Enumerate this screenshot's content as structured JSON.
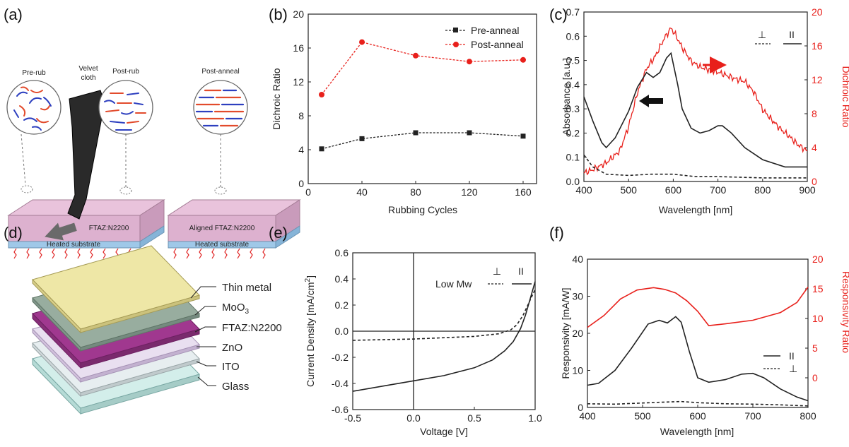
{
  "panels": {
    "a": {
      "label": "(a)",
      "pre_rub": "Pre-rub",
      "velvet_cloth": "Velvet cloth",
      "post_rub": "Post-rub",
      "post_anneal": "Post-anneal",
      "film_label": "FTAZ:N2200",
      "aligned_label": "Aligned FTAZ:N2200",
      "substrate_label": "Heated substrate"
    },
    "d": {
      "label": "(d)",
      "layers": [
        "Thin metal",
        "MoO3",
        "FTAZ:N2200",
        "ZnO",
        "ITO",
        "Glass"
      ]
    },
    "b": {
      "label": "(b)"
    },
    "c": {
      "label": "(c)"
    },
    "e": {
      "label": "(e)"
    },
    "f": {
      "label": "(f)"
    }
  },
  "chart_data": [
    {
      "id": "b",
      "type": "line",
      "xlabel": "Rubbing Cycles",
      "ylabel": "Dichroic Ratio",
      "xlim": [
        0,
        170
      ],
      "ylim": [
        0,
        20
      ],
      "xticks": [
        0,
        40,
        80,
        120,
        160
      ],
      "yticks": [
        0,
        4,
        8,
        12,
        16,
        20
      ],
      "x": [
        10,
        40,
        80,
        120,
        160
      ],
      "series": [
        {
          "name": "Pre-anneal",
          "values": [
            4.1,
            5.3,
            6.0,
            6.0,
            5.6
          ],
          "color": "#222222",
          "marker": "square"
        },
        {
          "name": "Post-anneal",
          "values": [
            10.5,
            16.7,
            15.1,
            14.4,
            14.6
          ],
          "color": "#e8201b",
          "marker": "circle"
        }
      ],
      "legend_position": "top-right"
    },
    {
      "id": "c",
      "type": "line",
      "xlabel": "Wavelength [nm]",
      "ylabel": "Absorbance [a.u.]",
      "ylabel_right": "Dichroic Ratio",
      "xlim": [
        400,
        900
      ],
      "ylim": [
        0,
        0.7
      ],
      "ylim_right": [
        0,
        20
      ],
      "xticks": [
        400,
        500,
        600,
        700,
        800,
        900
      ],
      "yticks": [
        0.0,
        0.1,
        0.2,
        0.3,
        0.4,
        0.5,
        0.6,
        0.7
      ],
      "yticks_right": [
        0,
        4,
        8,
        12,
        16,
        20
      ],
      "legend_symbols": [
        "⊥",
        "II"
      ],
      "series": [
        {
          "role": "parallel absorbance",
          "axis": "left",
          "style": "solid",
          "color": "#222222",
          "x": [
            400,
            420,
            440,
            450,
            470,
            500,
            520,
            540,
            555,
            570,
            585,
            595,
            610,
            620,
            640,
            660,
            680,
            700,
            710,
            730,
            760,
            800,
            850,
            900
          ],
          "y": [
            0.35,
            0.25,
            0.16,
            0.14,
            0.18,
            0.29,
            0.39,
            0.45,
            0.43,
            0.45,
            0.51,
            0.53,
            0.4,
            0.3,
            0.22,
            0.2,
            0.21,
            0.23,
            0.23,
            0.2,
            0.14,
            0.09,
            0.06,
            0.06
          ]
        },
        {
          "role": "perpendicular absorbance",
          "axis": "left",
          "style": "dashed",
          "color": "#222222",
          "x": [
            400,
            420,
            450,
            500,
            550,
            600,
            650,
            700,
            800,
            900
          ],
          "y": [
            0.11,
            0.06,
            0.03,
            0.025,
            0.03,
            0.03,
            0.02,
            0.02,
            0.015,
            0.015
          ]
        },
        {
          "role": "dichroic ratio",
          "axis": "right",
          "style": "solid",
          "color": "#e8201b",
          "x": [
            400,
            420,
            450,
            480,
            500,
            520,
            540,
            560,
            580,
            595,
            605,
            620,
            640,
            660,
            700,
            740,
            760,
            780,
            800,
            820,
            840,
            860,
            880,
            900
          ],
          "y": [
            1.0,
            1.4,
            2.2,
            3.6,
            6.5,
            10.5,
            13.3,
            14.8,
            16.9,
            18.1,
            17.3,
            15.8,
            14.2,
            13.5,
            12.9,
            12.1,
            11.8,
            10.6,
            8.5,
            7.3,
            6.2,
            5.3,
            4.3,
            3.6
          ]
        }
      ]
    },
    {
      "id": "e",
      "type": "line",
      "xlabel": "Voltage [V]",
      "ylabel": "Current Density [mA/cm²]",
      "xlim": [
        -0.5,
        1.0
      ],
      "ylim": [
        -0.6,
        0.6
      ],
      "xticks": [
        -0.5,
        0.0,
        0.5,
        1.0
      ],
      "yticks": [
        -0.6,
        -0.4,
        -0.2,
        0,
        0.2,
        0.4,
        0.6
      ],
      "legend_title": "Low Mw",
      "legend_symbols": [
        "⊥",
        "II"
      ],
      "series": [
        {
          "role": "parallel",
          "style": "solid",
          "color": "#222222",
          "x": [
            -0.5,
            -0.25,
            0.0,
            0.25,
            0.5,
            0.65,
            0.75,
            0.82,
            0.88,
            0.92,
            0.96,
            1.0
          ],
          "y": [
            -0.46,
            -0.42,
            -0.38,
            -0.34,
            -0.28,
            -0.22,
            -0.15,
            -0.08,
            0.02,
            0.12,
            0.25,
            0.38
          ]
        },
        {
          "role": "perpendicular",
          "style": "dashed",
          "color": "#222222",
          "x": [
            -0.5,
            0.0,
            0.5,
            0.7,
            0.8,
            0.85,
            0.9,
            0.95,
            1.0
          ],
          "y": [
            -0.07,
            -0.06,
            -0.04,
            -0.02,
            0.01,
            0.05,
            0.12,
            0.22,
            0.32
          ]
        }
      ]
    },
    {
      "id": "f",
      "type": "line",
      "xlabel": "Wavelength [nm]",
      "ylabel": "Responsivity [mA/W]",
      "ylabel_right": "Responsivity Ratio",
      "xlim": [
        400,
        800
      ],
      "ylim": [
        0,
        40
      ],
      "ylim_right": [
        -5,
        20
      ],
      "xticks": [
        400,
        500,
        600,
        700,
        800
      ],
      "yticks": [
        0,
        10,
        20,
        30,
        40
      ],
      "yticks_right": [
        0,
        5,
        10,
        15,
        20
      ],
      "legend_symbols": [
        "II",
        "⊥"
      ],
      "series": [
        {
          "role": "parallel responsivity",
          "axis": "left",
          "style": "solid",
          "color": "#222222",
          "x": [
            400,
            420,
            450,
            480,
            510,
            530,
            545,
            560,
            570,
            585,
            600,
            620,
            650,
            680,
            700,
            720,
            750,
            780,
            800
          ],
          "y": [
            6.0,
            6.5,
            10.0,
            16.0,
            22.5,
            23.5,
            22.8,
            24.5,
            23.0,
            15.0,
            8.0,
            6.8,
            7.5,
            9.0,
            9.2,
            8.0,
            5.0,
            2.8,
            1.8
          ]
        },
        {
          "role": "perpendicular responsivity",
          "axis": "left",
          "style": "dashed",
          "color": "#222222",
          "x": [
            400,
            450,
            500,
            550,
            570,
            600,
            650,
            700,
            750,
            800
          ],
          "y": [
            1.0,
            0.9,
            1.2,
            1.5,
            1.6,
            1.3,
            1.0,
            0.9,
            0.7,
            0.4
          ]
        },
        {
          "role": "responsivity ratio",
          "axis": "right",
          "style": "solid",
          "color": "#e8201b",
          "x": [
            400,
            430,
            460,
            490,
            520,
            540,
            560,
            580,
            600,
            620,
            650,
            700,
            750,
            780,
            800
          ],
          "y": [
            8.5,
            10.5,
            13.3,
            14.8,
            15.2,
            14.9,
            14.3,
            13.0,
            11.2,
            8.8,
            9.1,
            9.7,
            11.0,
            12.7,
            15.3
          ]
        }
      ]
    }
  ]
}
